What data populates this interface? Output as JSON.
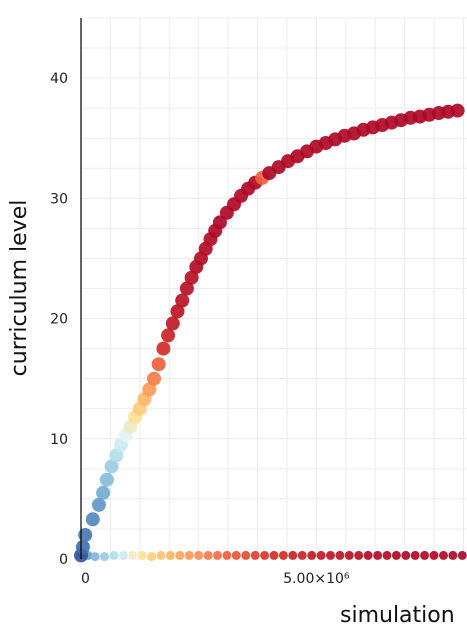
{
  "chart_data": {
    "type": "scatter",
    "title": "",
    "xlabel": "simulation",
    "ylabel": "curriculum level",
    "xlim": [
      0,
      8200000
    ],
    "ylim": [
      0,
      45
    ],
    "yticks": [
      {
        "value": 0,
        "label": "0"
      },
      {
        "value": 10,
        "label": "10"
      },
      {
        "value": 20,
        "label": "20"
      },
      {
        "value": 30,
        "label": "30"
      },
      {
        "value": 40,
        "label": "40"
      }
    ],
    "xticks": [
      {
        "value": 0,
        "label": "0"
      },
      {
        "value": 5000000,
        "label": "5.00×10⁶"
      }
    ],
    "grid": true,
    "legend": "none",
    "colormap": [
      "#313695",
      "#4575b4",
      "#74add1",
      "#abd9e9",
      "#e0f3f8",
      "#fee090",
      "#fdae61",
      "#f46d43",
      "#d73027",
      "#a50026"
    ],
    "series": [
      {
        "points": [
          [
            0,
            0.3,
            0.05
          ],
          [
            40000,
            1.0,
            0.1
          ],
          [
            90000,
            2.0,
            0.12
          ],
          [
            250000,
            3.3,
            0.15
          ],
          [
            380000,
            4.5,
            0.18
          ],
          [
            470000,
            5.5,
            0.22
          ],
          [
            550000,
            6.6,
            0.26
          ],
          [
            650000,
            7.7,
            0.3
          ],
          [
            750000,
            8.6,
            0.35
          ],
          [
            850000,
            9.5,
            0.4
          ],
          [
            950000,
            10.3,
            0.45
          ],
          [
            1050000,
            11.0,
            0.5
          ],
          [
            1150000,
            11.8,
            0.55
          ],
          [
            1250000,
            12.5,
            0.6
          ],
          [
            1350000,
            13.3,
            0.65
          ],
          [
            1450000,
            14.1,
            0.7
          ],
          [
            1550000,
            15.0,
            0.75
          ],
          [
            1650000,
            16.2,
            0.8
          ],
          [
            1750000,
            17.5,
            0.9
          ],
          [
            1850000,
            18.6,
            0.92
          ],
          [
            1950000,
            19.6,
            0.94
          ],
          [
            2050000,
            20.6,
            0.95
          ],
          [
            2150000,
            21.5,
            0.95
          ],
          [
            2250000,
            22.5,
            0.96
          ],
          [
            2350000,
            23.4,
            0.96
          ],
          [
            2450000,
            24.3,
            0.97
          ],
          [
            2550000,
            25.0,
            0.97
          ],
          [
            2650000,
            25.8,
            0.97
          ],
          [
            2750000,
            26.6,
            0.97
          ],
          [
            2850000,
            27.3,
            0.98
          ],
          [
            2950000,
            28.0,
            0.98
          ],
          [
            3100000,
            28.8,
            0.98
          ],
          [
            3250000,
            29.5,
            0.98
          ],
          [
            3400000,
            30.2,
            0.98
          ],
          [
            3550000,
            30.8,
            0.98
          ],
          [
            3700000,
            31.3,
            0.98
          ],
          [
            3850000,
            31.7,
            0.8
          ],
          [
            4000000,
            32.1,
            0.98
          ],
          [
            4200000,
            32.6,
            0.98
          ],
          [
            4400000,
            33.1,
            0.98
          ],
          [
            4600000,
            33.5,
            0.98
          ],
          [
            4800000,
            33.9,
            0.98
          ],
          [
            5000000,
            34.3,
            0.98
          ],
          [
            5200000,
            34.6,
            0.98
          ],
          [
            5400000,
            34.9,
            0.98
          ],
          [
            5600000,
            35.2,
            0.98
          ],
          [
            5800000,
            35.4,
            0.98
          ],
          [
            6000000,
            35.7,
            0.98
          ],
          [
            6200000,
            35.9,
            0.98
          ],
          [
            6400000,
            36.1,
            0.98
          ],
          [
            6600000,
            36.3,
            0.98
          ],
          [
            6800000,
            36.5,
            0.98
          ],
          [
            7000000,
            36.7,
            0.98
          ],
          [
            7200000,
            36.8,
            0.98
          ],
          [
            7400000,
            36.95,
            0.98
          ],
          [
            7600000,
            37.1,
            0.98
          ],
          [
            7800000,
            37.2,
            0.98
          ],
          [
            8000000,
            37.3,
            0.98
          ]
        ]
      },
      {
        "points": [
          [
            0,
            0.4,
            0.1
          ],
          [
            50000,
            0.4,
            0.15
          ],
          [
            150000,
            0.3,
            0.2
          ],
          [
            300000,
            0.2,
            0.25
          ],
          [
            500000,
            0.2,
            0.3
          ],
          [
            700000,
            0.3,
            0.35
          ],
          [
            900000,
            0.3,
            0.4
          ],
          [
            1100000,
            0.3,
            0.5
          ],
          [
            1300000,
            0.3,
            0.55
          ],
          [
            1500000,
            0.2,
            0.6
          ],
          [
            1700000,
            0.3,
            0.62
          ],
          [
            1900000,
            0.3,
            0.65
          ],
          [
            2100000,
            0.3,
            0.68
          ],
          [
            2300000,
            0.3,
            0.7
          ],
          [
            2500000,
            0.3,
            0.72
          ],
          [
            2700000,
            0.3,
            0.75
          ],
          [
            2900000,
            0.3,
            0.78
          ],
          [
            3100000,
            0.3,
            0.8
          ],
          [
            3300000,
            0.3,
            0.82
          ],
          [
            3500000,
            0.3,
            0.84
          ],
          [
            3700000,
            0.3,
            0.86
          ],
          [
            3900000,
            0.3,
            0.88
          ],
          [
            4100000,
            0.3,
            0.9
          ],
          [
            4300000,
            0.3,
            0.9
          ],
          [
            4500000,
            0.3,
            0.92
          ],
          [
            4700000,
            0.3,
            0.92
          ],
          [
            4900000,
            0.3,
            0.94
          ],
          [
            5100000,
            0.3,
            0.94
          ],
          [
            5300000,
            0.3,
            0.95
          ],
          [
            5500000,
            0.3,
            0.95
          ],
          [
            5700000,
            0.3,
            0.96
          ],
          [
            5900000,
            0.3,
            0.96
          ],
          [
            6100000,
            0.3,
            0.97
          ],
          [
            6300000,
            0.3,
            0.97
          ],
          [
            6500000,
            0.3,
            0.97
          ],
          [
            6700000,
            0.3,
            0.98
          ],
          [
            6900000,
            0.3,
            0.98
          ],
          [
            7100000,
            0.3,
            0.98
          ],
          [
            7300000,
            0.3,
            0.98
          ],
          [
            7500000,
            0.3,
            0.98
          ],
          [
            7700000,
            0.3,
            0.98
          ],
          [
            7900000,
            0.3,
            0.98
          ],
          [
            8100000,
            0.3,
            0.98
          ]
        ]
      }
    ]
  }
}
